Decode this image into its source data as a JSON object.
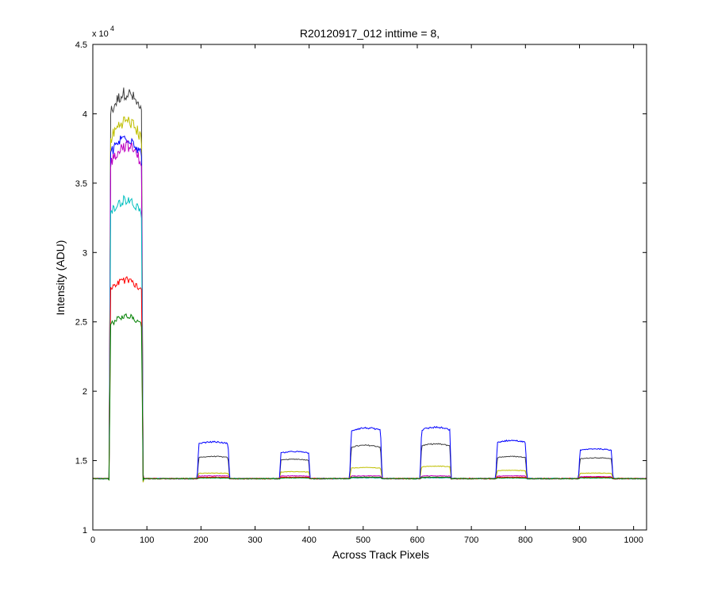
{
  "chart_data": {
    "type": "line",
    "title": "R20120917_012 inttime = 8,",
    "xlabel": "Across Track Pixels",
    "ylabel": "Intensity (ADU)",
    "xlim": [
      0,
      1024
    ],
    "ylim": [
      10000,
      45000
    ],
    "x_ticks": [
      0,
      100,
      200,
      300,
      400,
      500,
      600,
      700,
      800,
      900,
      1000
    ],
    "y_ticks": [
      10000,
      15000,
      20000,
      25000,
      30000,
      35000,
      40000,
      45000
    ],
    "y_tick_labels": [
      "1",
      "1.5",
      "2",
      "2.5",
      "3",
      "3.5",
      "4",
      "4.5"
    ],
    "y_exponent_label": "x 10",
    "y_exponent_power": "4",
    "grid": false,
    "legend": "none",
    "baseline": 13700,
    "segments": [
      {
        "start": 30,
        "end": 93
      },
      {
        "start": 193,
        "end": 253
      },
      {
        "start": 345,
        "end": 402
      },
      {
        "start": 475,
        "end": 535
      },
      {
        "start": 605,
        "end": 663
      },
      {
        "start": 745,
        "end": 803
      },
      {
        "start": 898,
        "end": 962
      }
    ],
    "series": [
      {
        "color": "#404040",
        "plateaus": [
          41500,
          15300,
          15100,
          16100,
          16200,
          15300,
          15200
        ]
      },
      {
        "color": "#bfbf00",
        "plateaus": [
          39500,
          14100,
          14200,
          14500,
          14600,
          14300,
          14100
        ]
      },
      {
        "color": "#0000ff",
        "plateaus": [
          38300,
          16350,
          15650,
          17350,
          17400,
          16450,
          15850
        ]
      },
      {
        "color": "#bf00bf",
        "plateaus": [
          37700,
          13900,
          13900,
          13900,
          13900,
          13900,
          13850
        ]
      },
      {
        "color": "#00bfbf",
        "plateaus": [
          33800,
          13750,
          13750,
          13750,
          13750,
          13750,
          13750
        ]
      },
      {
        "color": "#ff0000",
        "plateaus": [
          28000,
          13800,
          13800,
          13800,
          13800,
          13800,
          13800
        ]
      },
      {
        "color": "#008000",
        "plateaus": [
          25400,
          13750,
          13750,
          13800,
          13800,
          13750,
          13750
        ]
      }
    ]
  }
}
